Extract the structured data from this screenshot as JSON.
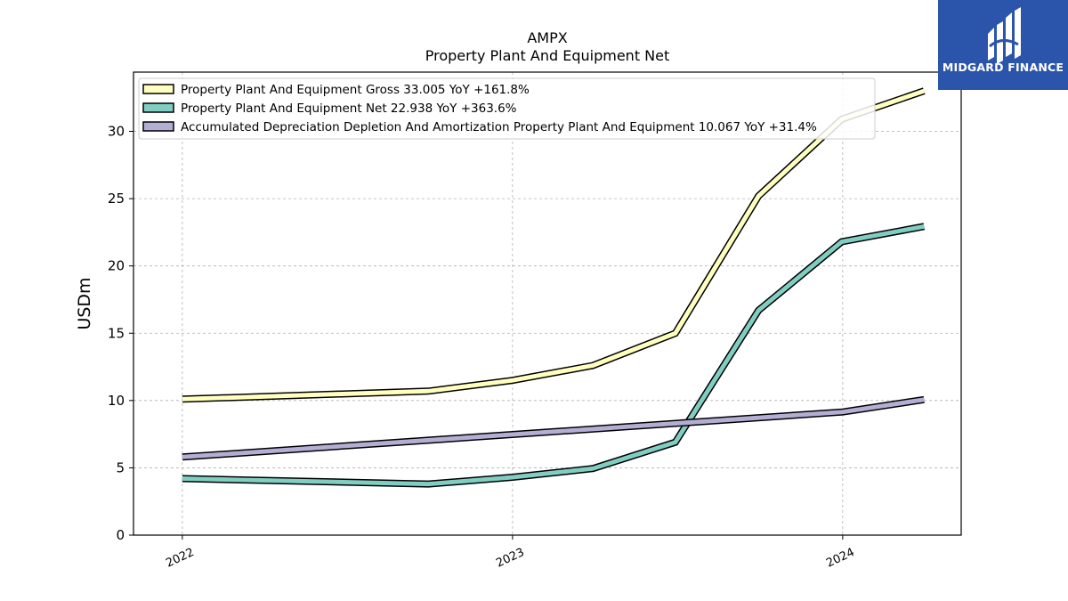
{
  "brand": {
    "name": "MIDGARD FINANCE",
    "color": "#2b55ab"
  },
  "chart_data": {
    "type": "line",
    "title": "AMPX",
    "subtitle": "Property Plant And Equipment Net",
    "ylabel": "USDm",
    "xlabel": "",
    "ylim": [
      0,
      34.4
    ],
    "yticks": [
      0,
      5,
      10,
      15,
      20,
      25,
      30
    ],
    "xlim": [
      "2021-11-08",
      "2024-05-11"
    ],
    "xticks": [
      {
        "label": "2022",
        "date": "2022-01-01"
      },
      {
        "label": "2023",
        "date": "2023-01-01"
      },
      {
        "label": "2024",
        "date": "2024-01-01"
      }
    ],
    "grid": true,
    "legend_position": "top-left",
    "series": [
      {
        "name": "Property Plant And Equipment Gross",
        "legend_label": "Property Plant And Equipment Gross  33.005 YoY +161.8%",
        "color": "#ffffbf",
        "x": [
          "2022-01-01",
          "2022-09-30",
          "2023-01-01",
          "2023-03-31",
          "2023-06-30",
          "2023-09-30",
          "2023-12-31",
          "2024-03-31"
        ],
        "values": [
          10.1,
          10.7,
          11.5,
          12.6,
          15.0,
          25.2,
          30.9,
          33.005
        ]
      },
      {
        "name": "Property Plant And Equipment Net",
        "legend_label": "Property Plant And Equipment Net  22.938 YoY +363.6%",
        "color": "#80cdc1",
        "x": [
          "2022-01-01",
          "2022-09-30",
          "2023-01-01",
          "2023-03-31",
          "2023-06-30",
          "2023-09-30",
          "2023-12-31",
          "2024-03-31"
        ],
        "values": [
          4.2,
          3.8,
          4.3,
          4.95,
          6.9,
          16.7,
          21.8,
          22.938
        ]
      },
      {
        "name": "Accumulated Depreciation Depletion And Amortization Property Plant And Equipment",
        "legend_label": "Accumulated Depreciation Depletion And Amortization Property Plant And Equipment  10.067 YoY +31.4%",
        "color": "#b3aed4",
        "x": [
          "2022-01-01",
          "2024-01-01",
          "2024-03-31"
        ],
        "values": [
          5.8,
          9.15,
          10.067
        ]
      }
    ]
  }
}
